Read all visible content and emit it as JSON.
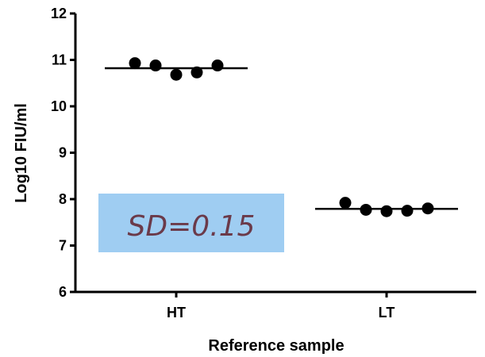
{
  "chart_data": {
    "type": "scatter",
    "title": "",
    "xlabel": "Reference sample",
    "ylabel": "Log10 FIU/ml",
    "categories": [
      "HT",
      "LT"
    ],
    "ylim": [
      6,
      12
    ],
    "yticks": [
      6,
      7,
      8,
      9,
      10,
      11,
      12
    ],
    "grid": false,
    "points": [
      {
        "category": "HT",
        "values": [
          10.93,
          10.88,
          10.68,
          10.73,
          10.88
        ]
      },
      {
        "category": "LT",
        "values": [
          7.92,
          7.77,
          7.74,
          7.75,
          7.8
        ]
      }
    ],
    "means": [
      {
        "category": "HT",
        "value": 10.82
      },
      {
        "category": "LT",
        "value": 7.79
      }
    ],
    "annotation": {
      "text": "SD=0.15",
      "box_color": "#9fcdf2",
      "text_color": "#6b3a4a"
    }
  }
}
